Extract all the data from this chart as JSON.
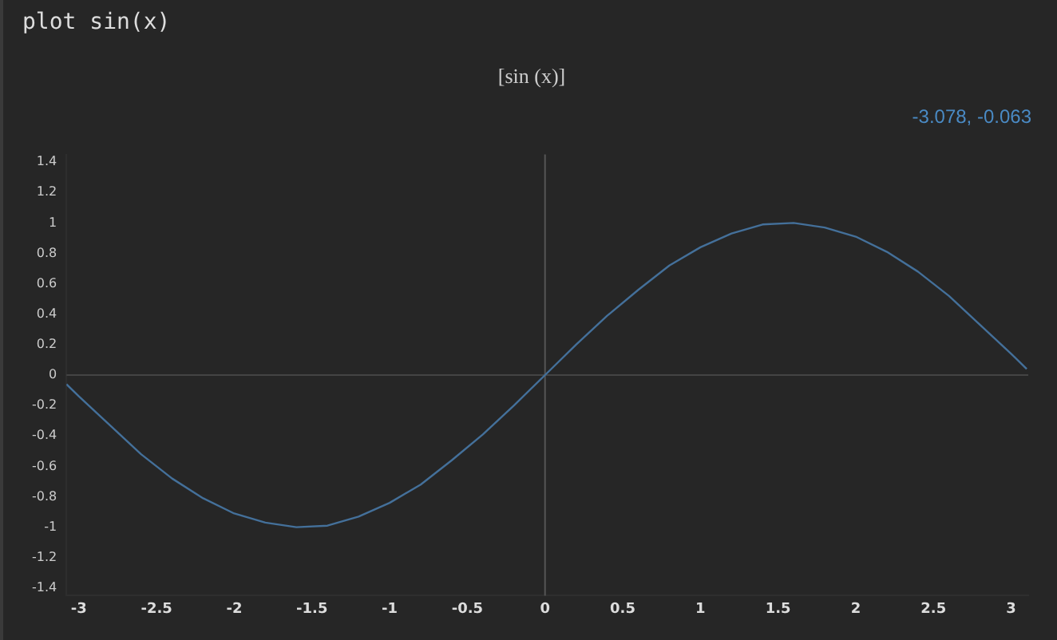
{
  "chart_data": {
    "type": "line",
    "title": "plot sin(x)",
    "subtitle": "[sin (x)]",
    "annotations": [
      "-3.078, -0.063"
    ],
    "x": [
      -3.08,
      -3.0,
      -2.8,
      -2.6,
      -2.4,
      -2.2,
      -2.0,
      -1.8,
      -1.6,
      -1.4,
      -1.2,
      -1.0,
      -0.8,
      -0.6,
      -0.4,
      -0.2,
      0,
      0.2,
      0.4,
      0.6,
      0.8,
      1.0,
      1.2,
      1.4,
      1.6,
      1.8,
      2.0,
      2.2,
      2.4,
      2.6,
      2.8,
      3.0,
      3.1
    ],
    "series": [
      {
        "color": "#44709a",
        "values": [
          -0.06,
          -0.14,
          -0.33,
          -0.52,
          -0.68,
          -0.81,
          -0.91,
          -0.97,
          -1.0,
          -0.99,
          -0.93,
          -0.84,
          -0.72,
          -0.56,
          -0.39,
          -0.2,
          0,
          0.2,
          0.39,
          0.56,
          0.72,
          0.84,
          0.93,
          0.99,
          1.0,
          0.97,
          0.91,
          0.81,
          0.68,
          0.52,
          0.33,
          0.14,
          0.04
        ]
      }
    ],
    "xlim": [
      -3.08,
      3.11
    ],
    "xticks": [
      -3,
      -2.5,
      -2,
      -1.5,
      -1,
      -0.5,
      0,
      0.5,
      1,
      1.5,
      2,
      2.5,
      3
    ],
    "ylim": [
      -1.45,
      1.45
    ],
    "yticks": [
      -1.4,
      -1.2,
      -1,
      -0.8,
      -0.6,
      -0.4,
      -0.2,
      0,
      0.2,
      0.4,
      0.6,
      0.8,
      1,
      1.2,
      1.4
    ],
    "ref_lines": [
      {
        "axis": "x",
        "value": 0,
        "color": "#555555"
      },
      {
        "axis": "y",
        "value": 0,
        "color": "#444444"
      }
    ],
    "grid": false,
    "legend": false,
    "marker": "none",
    "line_style": "solid"
  }
}
